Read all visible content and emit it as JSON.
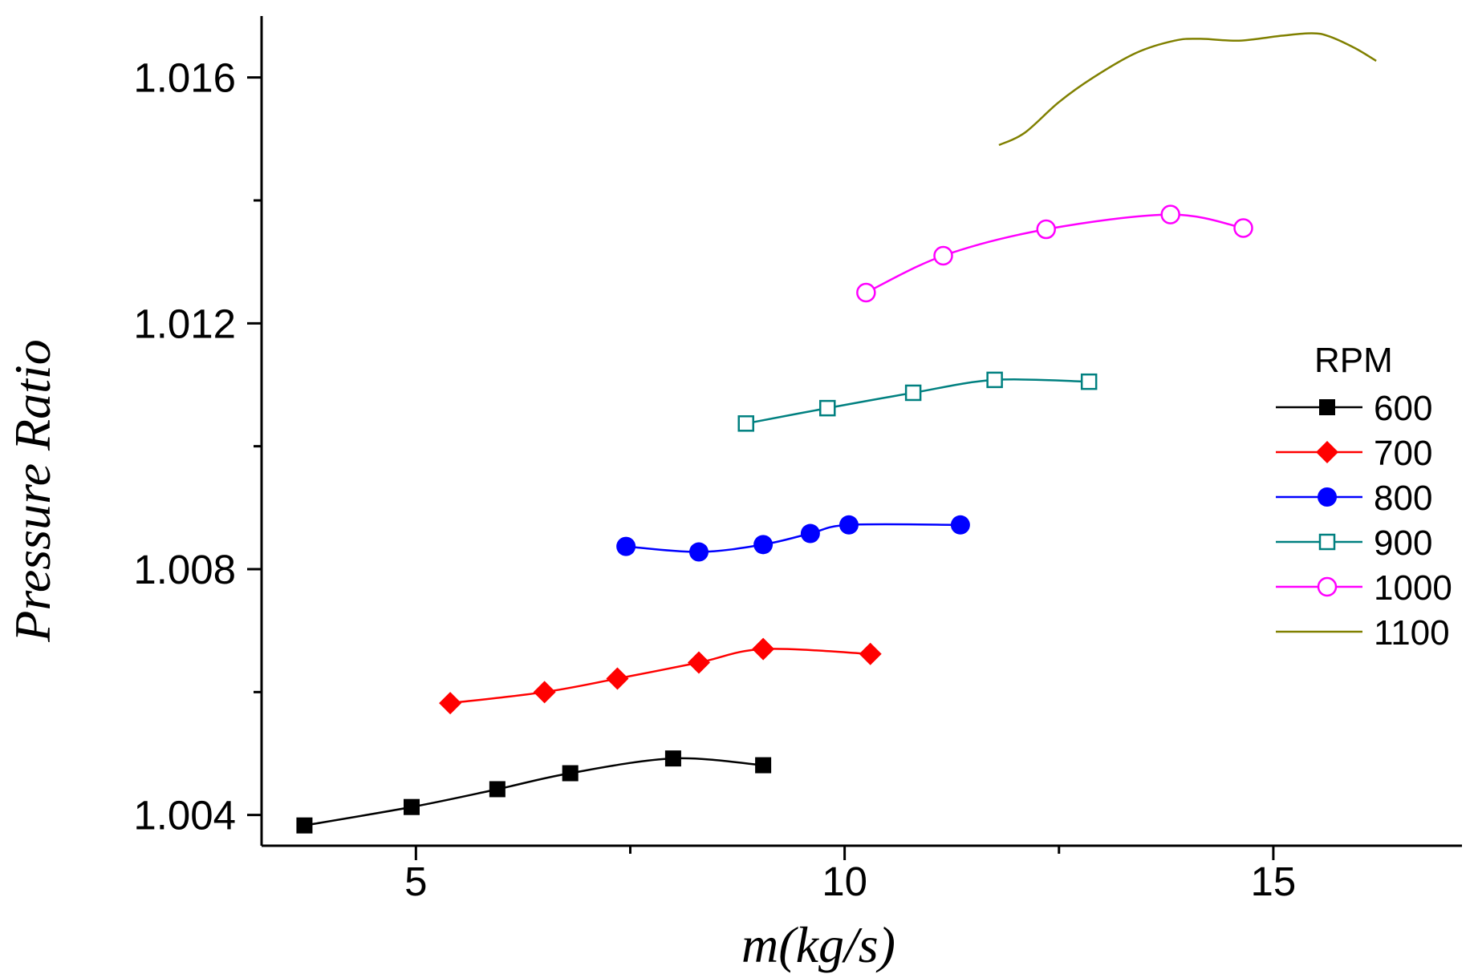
{
  "chart_data": {
    "type": "line",
    "title": "",
    "xlabel": "m(kg/s)",
    "ylabel": "Pressure Ratio",
    "xlim": [
      3.2,
      17.2
    ],
    "ylim": [
      1.0035,
      1.017
    ],
    "x_ticks": [
      5,
      10,
      15
    ],
    "x_tick_labels": [
      "5",
      "10",
      "15"
    ],
    "x_minor_ticks": [
      7.5,
      12.5
    ],
    "y_ticks": [
      1.004,
      1.008,
      1.012,
      1.016
    ],
    "y_tick_labels": [
      "1.004",
      "1.008",
      "1.012",
      "1.016"
    ],
    "y_minor_ticks": [
      1.006,
      1.01,
      1.014
    ],
    "grid": false,
    "legend": {
      "title": "RPM",
      "position": "right"
    },
    "series": [
      {
        "name": "600",
        "color": "#000000",
        "marker": "square-filled",
        "x": [
          3.7,
          4.95,
          5.95,
          6.8,
          8.0,
          9.05
        ],
        "y": [
          1.00383,
          1.00413,
          1.00442,
          1.00468,
          1.00492,
          1.00481
        ]
      },
      {
        "name": "700",
        "color": "#ff0000",
        "marker": "diamond-filled",
        "x": [
          5.4,
          6.5,
          7.35,
          8.3,
          9.05,
          10.3
        ],
        "y": [
          1.00582,
          1.006,
          1.00622,
          1.00648,
          1.0067,
          1.00662
        ]
      },
      {
        "name": "800",
        "color": "#0000ff",
        "marker": "circle-filled",
        "x": [
          7.45,
          8.3,
          9.05,
          9.6,
          10.05,
          11.35
        ],
        "y": [
          1.00837,
          1.00828,
          1.0084,
          1.00858,
          1.00872,
          1.00872
        ]
      },
      {
        "name": "900",
        "color": "#008080",
        "marker": "square-open",
        "x": [
          8.85,
          9.8,
          10.8,
          11.75,
          12.85
        ],
        "y": [
          1.01037,
          1.01062,
          1.01087,
          1.01108,
          1.01105
        ]
      },
      {
        "name": "1000",
        "color": "#ff00ff",
        "marker": "circle-open",
        "x": [
          10.25,
          11.15,
          12.35,
          13.8,
          14.65
        ],
        "y": [
          1.0125,
          1.0131,
          1.01353,
          1.01377,
          1.01355
        ]
      },
      {
        "name": "1100",
        "color": "#808000",
        "marker": "none",
        "x": [
          11.8,
          12.1,
          12.5,
          12.9,
          13.4,
          13.85,
          14.15,
          14.6,
          15.1,
          15.45,
          15.65,
          15.95,
          16.2
        ],
        "y": [
          1.0149,
          1.0151,
          1.0156,
          1.016,
          1.0164,
          1.0166,
          1.01663,
          1.0166,
          1.01668,
          1.01672,
          1.01667,
          1.01648,
          1.01627
        ]
      }
    ]
  }
}
